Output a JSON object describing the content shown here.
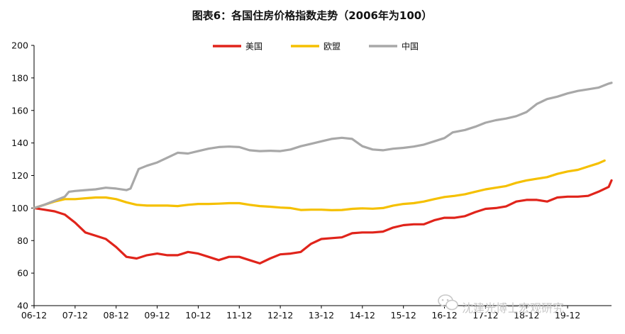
{
  "chart_data": {
    "type": "line",
    "title": "图表6：各国住房价格指数走势（2006年为100）",
    "x_tick_labels": [
      "06-12",
      "07-12",
      "08-12",
      "09-12",
      "10-12",
      "11-12",
      "12-12",
      "13-12",
      "14-12",
      "15-12",
      "16-12",
      "17-12",
      "18-12",
      "19-12"
    ],
    "y_tick_labels": [
      "40",
      "60",
      "80",
      "100",
      "120",
      "140",
      "160",
      "180",
      "200"
    ],
    "ylim": [
      40,
      200
    ],
    "xlim": [
      2006.0,
      2020.07
    ],
    "grid": false,
    "legend_position": "top",
    "series": [
      {
        "name": "美国",
        "color": "#e0241b",
        "points": [
          [
            2006.0,
            100
          ],
          [
            2006.25,
            99
          ],
          [
            2006.5,
            98
          ],
          [
            2006.75,
            96
          ],
          [
            2007.0,
            91
          ],
          [
            2007.25,
            85
          ],
          [
            2007.5,
            83
          ],
          [
            2007.75,
            81
          ],
          [
            2008.0,
            76
          ],
          [
            2008.25,
            70
          ],
          [
            2008.5,
            69
          ],
          [
            2008.75,
            71
          ],
          [
            2009.0,
            72
          ],
          [
            2009.25,
            71
          ],
          [
            2009.5,
            71
          ],
          [
            2009.75,
            73
          ],
          [
            2010.0,
            72
          ],
          [
            2010.25,
            70
          ],
          [
            2010.5,
            68
          ],
          [
            2010.75,
            70
          ],
          [
            2011.0,
            70
          ],
          [
            2011.25,
            68
          ],
          [
            2011.5,
            66
          ],
          [
            2011.75,
            69
          ],
          [
            2012.0,
            71.5
          ],
          [
            2012.25,
            72
          ],
          [
            2012.5,
            73
          ],
          [
            2012.75,
            78
          ],
          [
            2013.0,
            81
          ],
          [
            2013.25,
            81.5
          ],
          [
            2013.5,
            82
          ],
          [
            2013.75,
            84.5
          ],
          [
            2014.0,
            85
          ],
          [
            2014.25,
            85
          ],
          [
            2014.5,
            85.5
          ],
          [
            2014.75,
            88
          ],
          [
            2015.0,
            89.5
          ],
          [
            2015.25,
            90
          ],
          [
            2015.5,
            90
          ],
          [
            2015.75,
            92.5
          ],
          [
            2016.0,
            94
          ],
          [
            2016.25,
            94
          ],
          [
            2016.5,
            95
          ],
          [
            2016.75,
            97.5
          ],
          [
            2017.0,
            99.5
          ],
          [
            2017.25,
            100
          ],
          [
            2017.5,
            101
          ],
          [
            2017.75,
            104
          ],
          [
            2018.0,
            105
          ],
          [
            2018.25,
            105
          ],
          [
            2018.5,
            104
          ],
          [
            2018.75,
            106.5
          ],
          [
            2019.0,
            107
          ],
          [
            2019.25,
            107
          ],
          [
            2019.5,
            107.5
          ],
          [
            2019.75,
            110
          ],
          [
            2020.0,
            113
          ],
          [
            2020.07,
            117
          ]
        ]
      },
      {
        "name": "欧盟",
        "color": "#f5c000",
        "points": [
          [
            2006.0,
            100
          ],
          [
            2006.25,
            102
          ],
          [
            2006.5,
            104
          ],
          [
            2006.75,
            105.5
          ],
          [
            2007.0,
            105.5
          ],
          [
            2007.25,
            106
          ],
          [
            2007.5,
            106.5
          ],
          [
            2007.75,
            106.5
          ],
          [
            2008.0,
            105.5
          ],
          [
            2008.25,
            103.5
          ],
          [
            2008.5,
            102
          ],
          [
            2008.75,
            101.5
          ],
          [
            2009.0,
            101.5
          ],
          [
            2009.25,
            101.5
          ],
          [
            2009.5,
            101.2
          ],
          [
            2009.75,
            102
          ],
          [
            2010.0,
            102.5
          ],
          [
            2010.25,
            102.5
          ],
          [
            2010.5,
            102.7
          ],
          [
            2010.75,
            103
          ],
          [
            2011.0,
            103
          ],
          [
            2011.25,
            102
          ],
          [
            2011.5,
            101.2
          ],
          [
            2011.75,
            100.8
          ],
          [
            2012.0,
            100.3
          ],
          [
            2012.25,
            100
          ],
          [
            2012.5,
            98.8
          ],
          [
            2012.75,
            99
          ],
          [
            2013.0,
            99
          ],
          [
            2013.25,
            98.7
          ],
          [
            2013.5,
            98.8
          ],
          [
            2013.75,
            99.5
          ],
          [
            2014.0,
            99.8
          ],
          [
            2014.25,
            99.6
          ],
          [
            2014.5,
            100
          ],
          [
            2014.75,
            101.5
          ],
          [
            2015.0,
            102.5
          ],
          [
            2015.25,
            103
          ],
          [
            2015.5,
            104
          ],
          [
            2015.75,
            105.5
          ],
          [
            2016.0,
            106.8
          ],
          [
            2016.25,
            107.5
          ],
          [
            2016.5,
            108.5
          ],
          [
            2016.75,
            110
          ],
          [
            2017.0,
            111.5
          ],
          [
            2017.25,
            112.5
          ],
          [
            2017.5,
            113.5
          ],
          [
            2017.75,
            115.5
          ],
          [
            2018.0,
            117
          ],
          [
            2018.25,
            118
          ],
          [
            2018.5,
            119
          ],
          [
            2018.75,
            121
          ],
          [
            2019.0,
            122.5
          ],
          [
            2019.25,
            123.5
          ],
          [
            2019.5,
            125.5
          ],
          [
            2019.75,
            127.5
          ],
          [
            2019.9,
            129.2
          ]
        ]
      },
      {
        "name": "中国",
        "color": "#a8a8a8",
        "points": [
          [
            2006.0,
            100
          ],
          [
            2006.25,
            102
          ],
          [
            2006.5,
            104.5
          ],
          [
            2006.75,
            107
          ],
          [
            2006.85,
            110
          ],
          [
            2007.0,
            110.5
          ],
          [
            2007.25,
            111
          ],
          [
            2007.5,
            111.5
          ],
          [
            2007.75,
            112.5
          ],
          [
            2008.0,
            112
          ],
          [
            2008.25,
            111
          ],
          [
            2008.35,
            112
          ],
          [
            2008.55,
            124
          ],
          [
            2008.75,
            126
          ],
          [
            2009.0,
            128
          ],
          [
            2009.25,
            131
          ],
          [
            2009.5,
            134
          ],
          [
            2009.75,
            133.5
          ],
          [
            2010.0,
            135
          ],
          [
            2010.25,
            136.5
          ],
          [
            2010.5,
            137.5
          ],
          [
            2010.75,
            137.8
          ],
          [
            2011.0,
            137.5
          ],
          [
            2011.25,
            135.5
          ],
          [
            2011.5,
            135
          ],
          [
            2011.75,
            135.2
          ],
          [
            2012.0,
            135
          ],
          [
            2012.25,
            136
          ],
          [
            2012.5,
            138
          ],
          [
            2012.75,
            139.5
          ],
          [
            2013.0,
            141
          ],
          [
            2013.25,
            142.5
          ],
          [
            2013.5,
            143.2
          ],
          [
            2013.75,
            142.5
          ],
          [
            2014.0,
            138
          ],
          [
            2014.25,
            136
          ],
          [
            2014.5,
            135.5
          ],
          [
            2014.75,
            136.5
          ],
          [
            2015.0,
            137
          ],
          [
            2015.25,
            137.8
          ],
          [
            2015.5,
            139
          ],
          [
            2015.75,
            141
          ],
          [
            2016.0,
            143
          ],
          [
            2016.2,
            146.5
          ],
          [
            2016.5,
            148
          ],
          [
            2016.75,
            150
          ],
          [
            2017.0,
            152.5
          ],
          [
            2017.25,
            154
          ],
          [
            2017.5,
            155
          ],
          [
            2017.75,
            156.5
          ],
          [
            2018.0,
            159
          ],
          [
            2018.25,
            164
          ],
          [
            2018.5,
            167
          ],
          [
            2018.75,
            168.5
          ],
          [
            2019.0,
            170.5
          ],
          [
            2019.25,
            172
          ],
          [
            2019.5,
            173
          ],
          [
            2019.75,
            174
          ],
          [
            2020.0,
            176.5
          ],
          [
            2020.07,
            177
          ]
        ]
      }
    ]
  },
  "watermark": {
    "icon": "wechat-icon",
    "text": "沈建光博士宏观研究"
  }
}
